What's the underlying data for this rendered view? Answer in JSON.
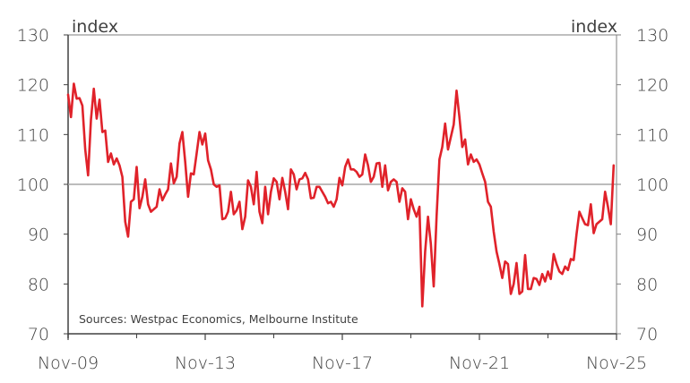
{
  "chart_data": {
    "type": "line",
    "left_unit": "index",
    "right_unit": "index",
    "source": "Sources: Westpac Economics, Melbourne Institute",
    "y_ticks": [
      70,
      80,
      90,
      100,
      110,
      120,
      130
    ],
    "ylim": [
      70,
      130
    ],
    "x_ticks": [
      {
        "label": "Nov-09",
        "month_index": 0
      },
      {
        "label": "Nov-13",
        "month_index": 48
      },
      {
        "label": "Nov-17",
        "month_index": 96
      },
      {
        "label": "Nov-21",
        "month_index": 144
      },
      {
        "label": "Nov-25",
        "month_index": 192
      }
    ],
    "x_minor_ticks": [
      24,
      72,
      120,
      168
    ],
    "x_range_months": [
      0,
      192
    ],
    "reference_line": 100,
    "colors": {
      "series": "#e0222a",
      "reference": "#a6a6a6",
      "axis": "#404040",
      "frame": "#7f7f7f"
    },
    "series": [
      {
        "start": "Nov-09",
        "frequency": "monthly",
        "values": [
          118.0,
          113.5,
          120.2,
          117.2,
          117.3,
          115.8,
          107.0,
          101.8,
          113.0,
          119.2,
          113.2,
          117.0,
          110.5,
          110.8,
          104.5,
          106.2,
          104.0,
          105.2,
          103.8,
          101.5,
          92.5,
          89.5,
          96.5,
          97.0,
          103.5,
          95.2,
          97.5,
          101.0,
          96.0,
          94.5,
          95.0,
          95.5,
          99.0,
          96.8,
          98.0,
          99.0,
          104.2,
          100.2,
          101.5,
          108.2,
          110.5,
          104.5,
          97.5,
          102.2,
          102.0,
          106.2,
          110.5,
          108.0,
          110.2,
          104.8,
          103.0,
          100.0,
          99.5,
          99.8,
          93.0,
          93.2,
          94.5,
          98.5,
          94.0,
          94.8,
          96.5,
          91.0,
          93.5,
          100.8,
          99.5,
          96.0,
          102.5,
          94.5,
          92.2,
          99.5,
          94.0,
          98.5,
          101.2,
          100.5,
          97.0,
          101.3,
          98.5,
          95.0,
          103.0,
          102.0,
          99.0,
          101.0,
          101.2,
          102.3,
          101.0,
          97.2,
          97.3,
          99.5,
          99.5,
          98.5,
          97.5,
          96.2,
          96.5,
          95.5,
          97.0,
          101.3,
          99.8,
          103.5,
          105.0,
          103.0,
          103.0,
          102.5,
          101.5,
          102.0,
          106.0,
          103.8,
          100.5,
          101.5,
          104.2,
          104.3,
          99.5,
          103.8,
          98.8,
          100.5,
          101.0,
          100.5,
          96.5,
          99.2,
          98.5,
          93.0,
          97.0,
          95.0,
          93.5,
          95.5,
          75.5,
          86.5,
          93.5,
          88.0,
          79.5,
          93.5,
          105.0,
          107.5,
          112.2,
          107.0,
          109.5,
          112.0,
          118.8,
          113.5,
          107.5,
          109.0,
          104.0,
          106.0,
          104.5,
          105.0,
          104.0,
          102.2,
          100.5,
          96.5,
          95.5,
          90.5,
          86.5,
          84.0,
          81.2,
          84.5,
          84.0,
          78.0,
          80.0,
          84.2,
          78.0,
          78.5,
          85.8,
          79.0,
          79.0,
          81.2,
          81.0,
          79.8,
          82.0,
          80.5,
          82.5,
          81.0,
          86.0,
          84.0,
          82.5,
          82.0,
          83.5,
          82.8,
          85.0,
          84.8,
          90.0,
          94.5,
          93.2,
          92.0,
          91.8,
          96.0,
          90.2,
          92.0,
          92.5,
          93.0,
          98.5,
          95.5,
          92.0,
          103.8
        ]
      }
    ],
    "grid": false,
    "legend": "none"
  }
}
